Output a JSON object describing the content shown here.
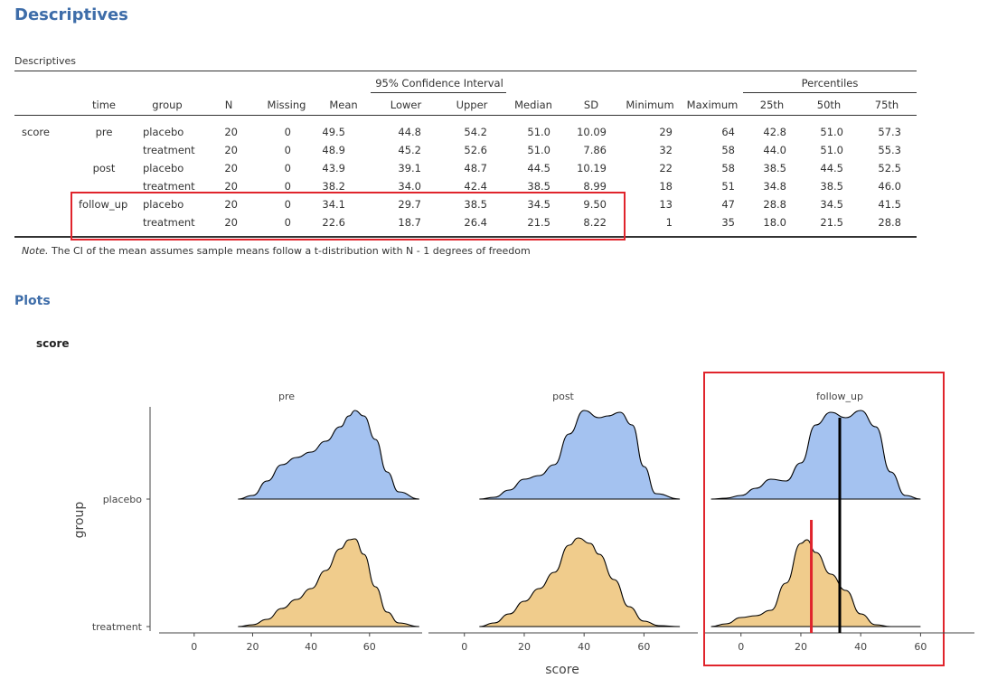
{
  "headings": {
    "descriptives": "Descriptives",
    "plots": "Plots"
  },
  "table": {
    "title": "Descriptives",
    "ci_header": "95% Confidence Interval",
    "percentiles_header": "Percentiles",
    "columns": [
      "time",
      "group",
      "N",
      "Missing",
      "Mean",
      "Lower",
      "Upper",
      "Median",
      "SD",
      "Minimum",
      "Maximum",
      "25th",
      "50th",
      "75th"
    ],
    "variable": "score",
    "rows": [
      {
        "time": "pre",
        "group": "placebo",
        "vals": [
          "20",
          "0",
          "49.5",
          "44.8",
          "54.2",
          "51.0",
          "10.09",
          "29",
          "64",
          "42.8",
          "51.0",
          "57.3"
        ]
      },
      {
        "time": "",
        "group": "treatment",
        "vals": [
          "20",
          "0",
          "48.9",
          "45.2",
          "52.6",
          "51.0",
          "7.86",
          "32",
          "58",
          "44.0",
          "51.0",
          "55.3"
        ]
      },
      {
        "time": "post",
        "group": "placebo",
        "vals": [
          "20",
          "0",
          "43.9",
          "39.1",
          "48.7",
          "44.5",
          "10.19",
          "22",
          "58",
          "38.5",
          "44.5",
          "52.5"
        ]
      },
      {
        "time": "",
        "group": "treatment",
        "vals": [
          "20",
          "0",
          "38.2",
          "34.0",
          "42.4",
          "38.5",
          "8.99",
          "18",
          "51",
          "34.8",
          "38.5",
          "46.0"
        ]
      },
      {
        "time": "follow_up",
        "group": "placebo",
        "vals": [
          "20",
          "0",
          "34.1",
          "29.7",
          "38.5",
          "34.5",
          "9.50",
          "13",
          "47",
          "28.8",
          "34.5",
          "41.5"
        ]
      },
      {
        "time": "",
        "group": "treatment",
        "vals": [
          "20",
          "0",
          "22.6",
          "18.7",
          "26.4",
          "21.5",
          "8.22",
          "1",
          "35",
          "18.0",
          "21.5",
          "28.8"
        ]
      }
    ],
    "note_label": "Note.",
    "note_text": " The CI of the mean assumes sample means follow a t-distribution with N - 1 degrees of freedom"
  },
  "plot": {
    "title": "score",
    "xlabel": "score",
    "ylabel": "group",
    "colors": {
      "placebo": "#a4c2f0",
      "treatment": "#f0cc8c",
      "highlight": "#e0242c"
    }
  },
  "chart_data": {
    "type": "area",
    "subtype": "ridgeline-density",
    "xlabel": "score",
    "ylabel": "group",
    "x_ticks": [
      0,
      20,
      40,
      60
    ],
    "xlim": [
      -12,
      78
    ],
    "groups": [
      "placebo",
      "treatment"
    ],
    "panels": [
      {
        "name": "pre",
        "series": [
          {
            "name": "placebo",
            "x": [
              15,
              20,
              25,
              30,
              35,
              40,
              45,
              50,
              53,
              55,
              58,
              62,
              66,
              70,
              77
            ],
            "y": [
              0.0,
              0.04,
              0.2,
              0.38,
              0.46,
              0.52,
              0.64,
              0.8,
              0.92,
              0.98,
              0.92,
              0.66,
              0.3,
              0.08,
              0.0
            ]
          },
          {
            "name": "treatment",
            "x": [
              15,
              20,
              25,
              30,
              35,
              40,
              45,
              50,
              53,
              55,
              58,
              62,
              66,
              70,
              77
            ],
            "y": [
              0.0,
              0.02,
              0.08,
              0.2,
              0.3,
              0.42,
              0.62,
              0.86,
              0.96,
              0.97,
              0.8,
              0.44,
              0.16,
              0.04,
              0.0
            ]
          }
        ]
      },
      {
        "name": "post",
        "series": [
          {
            "name": "placebo",
            "x": [
              5,
              10,
              15,
              20,
              25,
              30,
              35,
              40,
              45,
              48,
              52,
              56,
              60,
              64,
              72
            ],
            "y": [
              0.0,
              0.02,
              0.1,
              0.22,
              0.26,
              0.38,
              0.72,
              0.98,
              0.9,
              0.92,
              0.96,
              0.82,
              0.36,
              0.06,
              0.0
            ]
          },
          {
            "name": "treatment",
            "x": [
              5,
              10,
              15,
              20,
              25,
              30,
              35,
              38,
              42,
              45,
              50,
              55,
              60,
              65,
              72
            ],
            "y": [
              0.0,
              0.04,
              0.14,
              0.28,
              0.42,
              0.6,
              0.9,
              0.98,
              0.92,
              0.8,
              0.52,
              0.22,
              0.06,
              0.01,
              0.0
            ]
          }
        ]
      },
      {
        "name": "follow_up",
        "series": [
          {
            "name": "placebo",
            "x": [
              -10,
              -5,
              0,
              5,
              10,
              15,
              20,
              25,
              30,
              35,
              40,
              45,
              50,
              55,
              60
            ],
            "y": [
              0.0,
              0.01,
              0.04,
              0.12,
              0.22,
              0.2,
              0.4,
              0.82,
              0.96,
              0.9,
              0.98,
              0.8,
              0.3,
              0.04,
              0.0
            ]
          },
          {
            "name": "treatment",
            "x": [
              -10,
              -5,
              0,
              5,
              10,
              15,
              20,
              22,
              25,
              30,
              35,
              40,
              45,
              50,
              60
            ],
            "y": [
              0.0,
              0.03,
              0.1,
              0.12,
              0.18,
              0.48,
              0.92,
              0.96,
              0.82,
              0.58,
              0.4,
              0.14,
              0.02,
              0.0,
              0.0
            ]
          }
        ]
      }
    ],
    "reference_lines": [
      {
        "panel": "follow_up",
        "x": 33,
        "color": "#000000",
        "span": "both"
      },
      {
        "panel": "follow_up",
        "x": 23.5,
        "color": "#e0242c",
        "span": "treatment"
      }
    ]
  }
}
